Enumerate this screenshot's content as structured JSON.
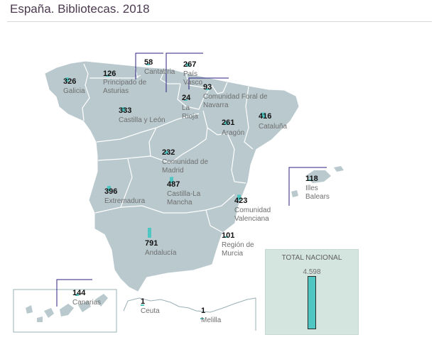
{
  "title": "España. Bibliotecas. 2018",
  "colors": {
    "map_fill": "#b9c9ce",
    "map_border": "#ffffff",
    "bar": "#4fc6c2",
    "leader_line": "#2b2080",
    "total_box_bg": "#d4e4df"
  },
  "total": {
    "label": "TOTAL NACIONAL",
    "value": "4.598",
    "numeric": 4598
  },
  "regions": [
    {
      "id": "galicia",
      "name": [
        "Galicia"
      ],
      "value": 326
    },
    {
      "id": "asturias",
      "name": [
        "Principado de",
        "Asturias"
      ],
      "value": 126
    },
    {
      "id": "cantabria",
      "name": [
        "Cantabria"
      ],
      "value": 58
    },
    {
      "id": "pais-vasco",
      "name": [
        "País",
        "Vasco"
      ],
      "value": 267
    },
    {
      "id": "navarra",
      "name": [
        "Comunidad Foral de",
        "Navarra"
      ],
      "value": 93
    },
    {
      "id": "la-rioja",
      "name": [
        "La",
        "Rioja"
      ],
      "value": 24
    },
    {
      "id": "castilla-leon",
      "name": [
        "Castilla y León"
      ],
      "value": 333
    },
    {
      "id": "aragon",
      "name": [
        "Aragón"
      ],
      "value": 261
    },
    {
      "id": "cataluna",
      "name": [
        "Cataluña"
      ],
      "value": 416
    },
    {
      "id": "madrid",
      "name": [
        "Comunidad de",
        "Madrid"
      ],
      "value": 232
    },
    {
      "id": "castilla-la-mancha",
      "name": [
        "Castilla-La",
        "Mancha"
      ],
      "value": 487
    },
    {
      "id": "extremadura",
      "name": [
        "Extremadura"
      ],
      "value": 396
    },
    {
      "id": "valenciana",
      "name": [
        "Comunidad",
        "Valenciana"
      ],
      "value": 423
    },
    {
      "id": "baleares",
      "name": [
        "Illes",
        "Balears"
      ],
      "value": 118
    },
    {
      "id": "murcia",
      "name": [
        "Región de",
        "Murcia"
      ],
      "value": 101
    },
    {
      "id": "andalucia",
      "name": [
        "Andalucía"
      ],
      "value": 791
    },
    {
      "id": "canarias",
      "name": [
        "Canarias"
      ],
      "value": 144
    },
    {
      "id": "ceuta",
      "name": [
        "Ceuta"
      ],
      "value": 1
    },
    {
      "id": "melilla",
      "name": [
        "Melilla"
      ],
      "value": 1
    }
  ]
}
